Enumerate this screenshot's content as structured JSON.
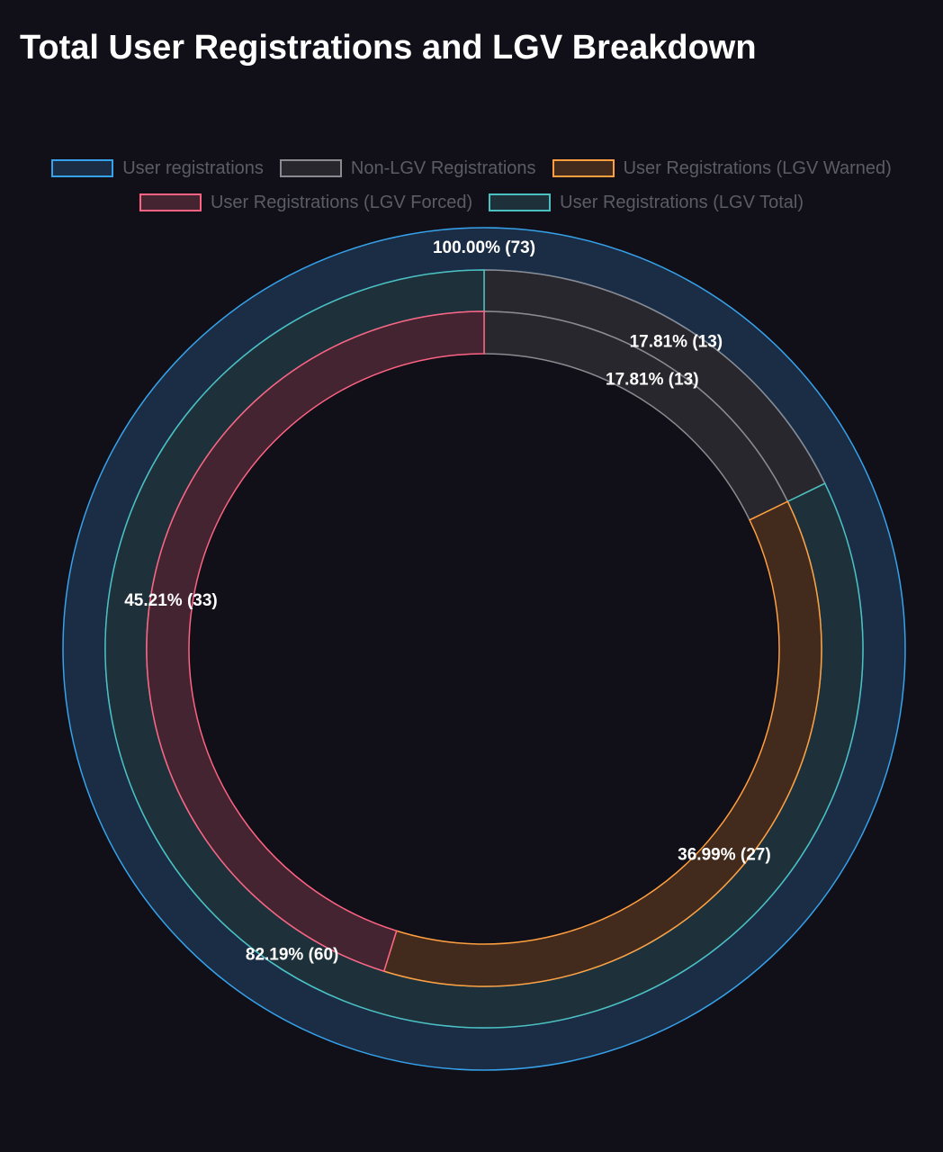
{
  "chart_data": {
    "type": "pie",
    "variant": "nested-doughnut",
    "title": "Total User Registrations and LGV Breakdown",
    "legend": {
      "placement": "top-center",
      "entries": [
        "User registrations",
        "Non-LGV Registrations",
        "User Registrations (LGV Warned)",
        "User Registrations (LGV Forced)",
        "User Registrations (LGV Total)"
      ]
    },
    "total": 73,
    "rings": [
      {
        "name": "User registrations",
        "slices": [
          {
            "series": "User registrations",
            "value": 73,
            "label": "100.00% (73)"
          }
        ]
      },
      {
        "name": "Ring 2",
        "slices": [
          {
            "series": "Non-LGV Registrations",
            "value": 13,
            "label": "17.81% (13)"
          },
          {
            "series": "User Registrations (LGV Total)",
            "value": 60,
            "label": "82.19% (60)"
          }
        ]
      },
      {
        "name": "Ring 3",
        "slices": [
          {
            "series": "Non-LGV Registrations",
            "value": 13,
            "label": "17.81% (13)"
          },
          {
            "series": "User Registrations (LGV Warned)",
            "value": 27,
            "label": "36.99% (27)"
          },
          {
            "series": "User Registrations (LGV Forced)",
            "value": 33,
            "label": "45.21% (33)"
          }
        ]
      }
    ],
    "colors": {
      "User registrations": {
        "border": "#36a2eb",
        "fill": "#1b2d45"
      },
      "Non-LGV Registrations": {
        "border": "#8a8a90",
        "fill": "#28272d"
      },
      "User Registrations (LGV Warned)": {
        "border": "#ff9f40",
        "fill": "#422a1c"
      },
      "User Registrations (LGV Forced)": {
        "border": "#ff6384",
        "fill": "#432430"
      },
      "User Registrations (LGV Total)": {
        "border": "#4bc0c0",
        "fill": "#1e3039"
      }
    },
    "background": "#111018"
  }
}
